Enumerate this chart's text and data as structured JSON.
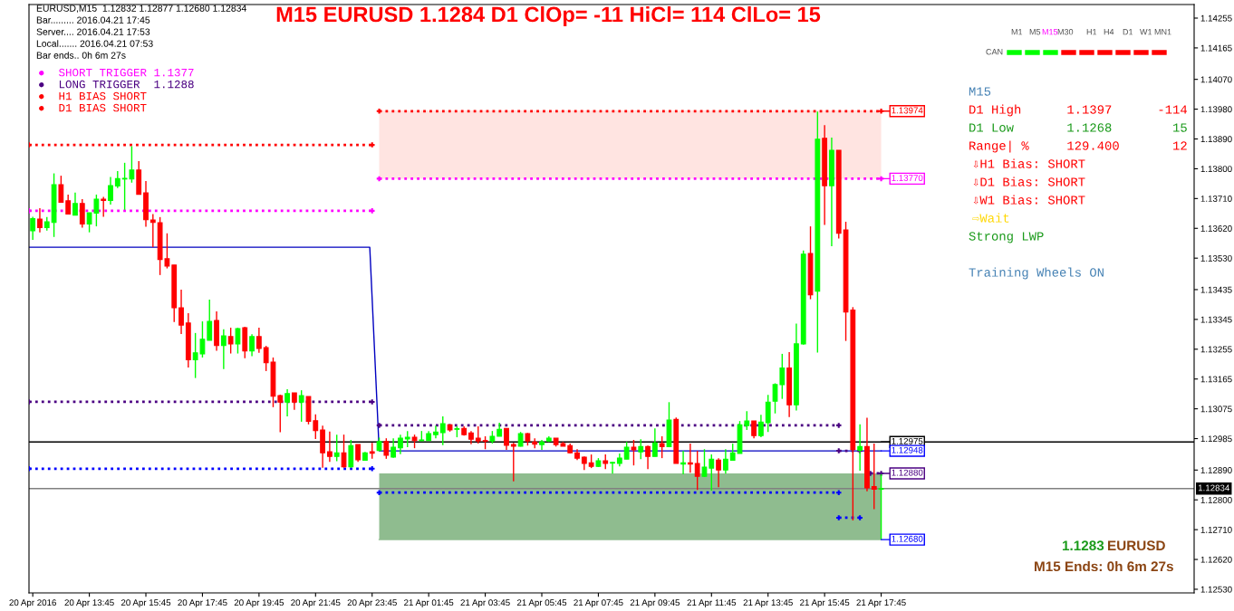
{
  "chart_data": {
    "type": "candlestick",
    "title": "M15 EURUSD 1.1284 D1 ClOp= -11 HiCl= 114 ClLo= 15",
    "x": [
      "2016-04-20T11:45",
      "2016-04-20T12:00",
      "2016-04-20T12:15",
      "2016-04-20T12:30",
      "2016-04-20T12:45",
      "2016-04-20T13:00",
      "2016-04-20T13:15",
      "2016-04-20T13:30",
      "2016-04-20T13:45",
      "2016-04-20T14:00",
      "2016-04-20T14:15",
      "2016-04-20T14:30",
      "2016-04-20T14:45",
      "2016-04-20T15:00",
      "2016-04-20T15:15",
      "2016-04-20T15:30",
      "2016-04-20T15:45",
      "2016-04-20T16:00",
      "2016-04-20T16:15",
      "2016-04-20T16:30",
      "2016-04-20T16:45",
      "2016-04-20T17:00",
      "2016-04-20T17:15",
      "2016-04-20T17:30",
      "2016-04-20T17:45",
      "2016-04-20T18:00",
      "2016-04-20T18:15",
      "2016-04-20T18:30",
      "2016-04-20T18:45",
      "2016-04-20T19:00",
      "2016-04-20T19:15",
      "2016-04-20T19:30",
      "2016-04-20T19:45",
      "2016-04-20T20:00",
      "2016-04-20T20:15",
      "2016-04-20T20:30",
      "2016-04-20T20:45",
      "2016-04-20T21:00",
      "2016-04-20T21:15",
      "2016-04-20T21:30",
      "2016-04-20T21:45",
      "2016-04-20T22:00",
      "2016-04-20T22:15",
      "2016-04-20T22:30",
      "2016-04-20T22:45",
      "2016-04-20T23:00",
      "2016-04-20T23:15",
      "2016-04-20T23:30",
      "2016-04-20T23:45",
      "2016-04-21T00:00",
      "2016-04-21T00:15",
      "2016-04-21T00:30",
      "2016-04-21T00:45",
      "2016-04-21T01:00",
      "2016-04-21T01:15",
      "2016-04-21T01:30",
      "2016-04-21T01:45",
      "2016-04-21T02:00",
      "2016-04-21T02:15",
      "2016-04-21T02:30",
      "2016-04-21T02:45",
      "2016-04-21T03:00",
      "2016-04-21T03:15",
      "2016-04-21T03:30",
      "2016-04-21T03:45",
      "2016-04-21T04:00",
      "2016-04-21T04:15",
      "2016-04-21T04:30",
      "2016-04-21T04:45",
      "2016-04-21T05:00",
      "2016-04-21T05:15",
      "2016-04-21T05:30",
      "2016-04-21T05:45",
      "2016-04-21T06:00",
      "2016-04-21T06:15",
      "2016-04-21T06:30",
      "2016-04-21T06:45",
      "2016-04-21T07:00",
      "2016-04-21T07:15",
      "2016-04-21T07:30",
      "2016-04-21T07:45",
      "2016-04-21T08:00",
      "2016-04-21T08:15",
      "2016-04-21T08:30",
      "2016-04-21T08:45",
      "2016-04-21T09:00",
      "2016-04-21T09:15",
      "2016-04-21T09:30",
      "2016-04-21T09:45",
      "2016-04-21T10:00",
      "2016-04-21T10:15",
      "2016-04-21T10:30",
      "2016-04-21T10:45",
      "2016-04-21T11:00",
      "2016-04-21T11:15",
      "2016-04-21T11:30",
      "2016-04-21T11:45",
      "2016-04-21T12:00",
      "2016-04-21T12:15",
      "2016-04-21T12:30",
      "2016-04-21T12:45",
      "2016-04-21T13:00",
      "2016-04-21T13:15",
      "2016-04-21T13:30",
      "2016-04-21T13:45",
      "2016-04-21T14:00",
      "2016-04-21T14:15",
      "2016-04-21T14:30",
      "2016-04-21T14:45",
      "2016-04-21T15:00",
      "2016-04-21T15:15",
      "2016-04-21T15:30",
      "2016-04-21T15:45",
      "2016-04-21T16:00",
      "2016-04-21T16:15",
      "2016-04-21T16:30",
      "2016-04-21T16:45",
      "2016-04-21T17:00",
      "2016-04-21T17:15",
      "2016-04-21T17:30",
      "2016-04-21T17:45"
    ],
    "ohlc": [
      [
        1.13613,
        1.13655,
        1.13585,
        1.13649
      ],
      [
        1.13648,
        1.13681,
        1.13608,
        1.13622
      ],
      [
        1.13622,
        1.13654,
        1.13613,
        1.1364
      ],
      [
        1.13638,
        1.13786,
        1.13594,
        1.13752
      ],
      [
        1.13752,
        1.13779,
        1.13697,
        1.13699
      ],
      [
        1.13703,
        1.13722,
        1.13663,
        1.13663
      ],
      [
        1.1366,
        1.13728,
        1.1366,
        1.13695
      ],
      [
        1.13695,
        1.13708,
        1.13622,
        1.13633
      ],
      [
        1.13633,
        1.13667,
        1.13608,
        1.13667
      ],
      [
        1.13666,
        1.13722,
        1.13626,
        1.13708
      ],
      [
        1.13708,
        1.13715,
        1.13655,
        1.13704
      ],
      [
        1.13704,
        1.13775,
        1.13692,
        1.13749
      ],
      [
        1.13748,
        1.13793,
        1.13742,
        1.1377
      ],
      [
        1.13769,
        1.13818,
        1.13676,
        1.13771
      ],
      [
        1.13769,
        1.13868,
        1.13758,
        1.13796
      ],
      [
        1.13796,
        1.13823,
        1.13723,
        1.13723
      ],
      [
        1.13727,
        1.13763,
        1.13625,
        1.13646
      ],
      [
        1.13645,
        1.13663,
        1.13563,
        1.13638
      ],
      [
        1.13637,
        1.13654,
        1.13479,
        1.13526
      ],
      [
        1.13528,
        1.13605,
        1.13499,
        1.13506
      ],
      [
        1.13509,
        1.13509,
        1.13337,
        1.1338
      ],
      [
        1.1338,
        1.13435,
        1.13301,
        1.13328
      ],
      [
        1.13334,
        1.13364,
        1.132,
        1.13223
      ],
      [
        1.13223,
        1.13304,
        1.13168,
        1.13244
      ],
      [
        1.13241,
        1.13339,
        1.1323,
        1.13285
      ],
      [
        1.13282,
        1.13405,
        1.13282,
        1.13339
      ],
      [
        1.13342,
        1.13369,
        1.1325,
        1.13266
      ],
      [
        1.13266,
        1.13315,
        1.13195,
        1.13295
      ],
      [
        1.13293,
        1.1332,
        1.13242,
        1.13271
      ],
      [
        1.13271,
        1.1332,
        1.13242,
        1.13317
      ],
      [
        1.1332,
        1.13323,
        1.13228,
        1.1325
      ],
      [
        1.1325,
        1.133,
        1.13234,
        1.13293
      ],
      [
        1.13293,
        1.1332,
        1.13244,
        1.13257
      ],
      [
        1.1326,
        1.13265,
        1.13189,
        1.13214
      ],
      [
        1.13216,
        1.1323,
        1.1308,
        1.13113
      ],
      [
        1.13115,
        1.13118,
        1.13004,
        1.13095
      ],
      [
        1.13095,
        1.13134,
        1.13052,
        1.13121
      ],
      [
        1.13123,
        1.13123,
        1.13072,
        1.13095
      ],
      [
        1.13095,
        1.13131,
        1.13036,
        1.13115
      ],
      [
        1.13112,
        1.13112,
        1.13028,
        1.13037
      ],
      [
        1.13039,
        1.13058,
        1.12984,
        1.13009
      ],
      [
        1.13011,
        1.13024,
        1.12897,
        1.12942
      ],
      [
        1.12945,
        1.13006,
        1.12915,
        1.12931
      ],
      [
        1.12931,
        1.12997,
        1.12917,
        1.12942
      ],
      [
        1.12942,
        1.12997,
        1.12897,
        1.129
      ],
      [
        1.129,
        1.12981,
        1.12897,
        1.12964
      ],
      [
        1.12967,
        1.12967,
        1.12915,
        1.12921
      ],
      [
        1.1292,
        1.12945,
        1.12918,
        1.12942
      ],
      [
        1.12945,
        1.12972,
        1.12924,
        1.12941
      ],
      [
        1.12949,
        1.12988,
        1.12947,
        1.12976
      ],
      [
        1.12976,
        1.12986,
        1.12924,
        1.12935
      ],
      [
        1.12929,
        1.12986,
        1.12927,
        1.12959
      ],
      [
        1.12957,
        1.12997,
        1.12938,
        1.12986
      ],
      [
        1.12984,
        1.13008,
        1.12959,
        1.12989
      ],
      [
        1.12989,
        1.12997,
        1.12956,
        1.12979
      ],
      [
        1.12979,
        1.13008,
        1.12977,
        1.12981
      ],
      [
        1.12979,
        1.13008,
        1.12979,
        1.13
      ],
      [
        1.12997,
        1.13024,
        1.12986,
        1.13005
      ],
      [
        1.13003,
        1.13052,
        1.12965,
        1.1303
      ],
      [
        1.13027,
        1.13027,
        1.13006,
        1.13011
      ],
      [
        1.13013,
        1.13022,
        1.12989,
        1.13015
      ],
      [
        1.13016,
        1.13022,
        1.12994,
        1.12997
      ],
      [
        1.13002,
        1.13008,
        1.12968,
        1.12983
      ],
      [
        1.12986,
        1.13022,
        1.1297,
        1.12978
      ],
      [
        1.12979,
        1.12992,
        1.12953,
        1.12977
      ],
      [
        1.12978,
        1.13008,
        1.1297,
        1.12992
      ],
      [
        1.12992,
        1.13033,
        1.12992,
        1.13013
      ],
      [
        1.13016,
        1.13016,
        1.12951,
        1.12965
      ],
      [
        1.12967,
        1.12972,
        1.12856,
        1.12962
      ],
      [
        1.12962,
        1.13005,
        1.12961,
        1.13
      ],
      [
        1.13,
        1.13002,
        1.12964,
        1.12978
      ],
      [
        1.12975,
        1.12986,
        1.12956,
        1.12968
      ],
      [
        1.12967,
        1.12981,
        1.12951,
        1.12975
      ],
      [
        1.12978,
        1.12992,
        1.12975,
        1.12986
      ],
      [
        1.12986,
        1.12986,
        1.12961,
        1.12967
      ],
      [
        1.1297,
        1.12975,
        1.12962,
        1.12962
      ],
      [
        1.12964,
        1.1297,
        1.1294,
        1.12942
      ],
      [
        1.12942,
        1.12953,
        1.1292,
        1.12926
      ],
      [
        1.12929,
        1.12931,
        1.1289,
        1.1291
      ],
      [
        1.12912,
        1.12937,
        1.12896,
        1.12901
      ],
      [
        1.12901,
        1.12926,
        1.12899,
        1.12918
      ],
      [
        1.12918,
        1.12937,
        1.12893,
        1.1291
      ],
      [
        1.12911,
        1.12915,
        1.12879,
        1.12913
      ],
      [
        1.1291,
        1.1294,
        1.12901,
        1.12926
      ],
      [
        1.12923,
        1.12975,
        1.12923,
        1.12959
      ],
      [
        1.12959,
        1.12981,
        1.12904,
        1.12951
      ],
      [
        1.12945,
        1.12983,
        1.12923,
        1.12961
      ],
      [
        1.12961,
        1.12964,
        1.12893,
        1.12931
      ],
      [
        1.12931,
        1.13016,
        1.12931,
        1.12972
      ],
      [
        1.1297,
        1.12992,
        1.12926,
        1.12961
      ],
      [
        1.12961,
        1.13095,
        1.12959,
        1.13041
      ],
      [
        1.13043,
        1.13049,
        1.1291,
        1.1291
      ],
      [
        1.12908,
        1.12948,
        1.12877,
        1.12912
      ],
      [
        1.12912,
        1.1297,
        1.12882,
        1.12908
      ],
      [
        1.1291,
        1.12948,
        1.1283,
        1.12871
      ],
      [
        1.12871,
        1.12953,
        1.12869,
        1.12899
      ],
      [
        1.12896,
        1.12937,
        1.12828,
        1.12923
      ],
      [
        1.1292,
        1.12926,
        1.12838,
        1.1289
      ],
      [
        1.1289,
        1.12953,
        1.12879,
        1.12923
      ],
      [
        1.1292,
        1.1297,
        1.1292,
        1.12942
      ],
      [
        1.1294,
        1.13038,
        1.1294,
        1.13027
      ],
      [
        1.13024,
        1.13068,
        1.13011,
        1.13038
      ],
      [
        1.13038,
        1.13038,
        1.12986,
        1.12994
      ],
      [
        1.12994,
        1.13057,
        1.12989,
        1.13035
      ],
      [
        1.13033,
        1.13117,
        1.13005,
        1.13095
      ],
      [
        1.13098,
        1.13152,
        1.13061,
        1.13148
      ],
      [
        1.13148,
        1.13241,
        1.13105,
        1.13198
      ],
      [
        1.13198,
        1.13246,
        1.1305,
        1.13087
      ],
      [
        1.13087,
        1.13332,
        1.1307,
        1.13271
      ],
      [
        1.13271,
        1.13553,
        1.13269,
        1.13542
      ],
      [
        1.13544,
        1.13626,
        1.13406,
        1.13419
      ],
      [
        1.1343,
        1.13973,
        1.13245,
        1.13889
      ],
      [
        1.13892,
        1.13932,
        1.1363,
        1.13749
      ],
      [
        1.13749,
        1.13894,
        1.13566,
        1.13856
      ],
      [
        1.13856,
        1.13856,
        1.13589,
        1.13605
      ],
      [
        1.13615,
        1.1364,
        1.1328,
        1.13367
      ],
      [
        1.13373,
        1.13382,
        1.12738,
        1.12952
      ],
      [
        1.1295,
        1.13028,
        1.12888,
        1.12961
      ],
      [
        1.12961,
        1.13048,
        1.12826,
        1.12836
      ],
      [
        1.1284,
        1.1297,
        1.12772,
        1.12832
      ],
      [
        1.12832,
        1.12877,
        1.1268,
        1.12834
      ]
    ],
    "colors": [
      "#00ff00",
      "#ff0000",
      "#00ff00",
      "#00ff00",
      "#ff0000",
      "#ff0000",
      "#00ff00",
      "#ff0000",
      "#00ff00",
      "#00ff00",
      "#ff0000",
      "#00ff00",
      "#00ff00",
      "#00ff00",
      "#00ff00",
      "#ff0000",
      "#ff0000",
      "#ff0000",
      "#ff0000",
      "#ff0000",
      "#ff0000",
      "#ff0000",
      "#ff0000",
      "#00ff00",
      "#00ff00",
      "#00ff00",
      "#ff0000",
      "#00ff00",
      "#ff0000",
      "#00ff00",
      "#ff0000",
      "#00ff00",
      "#ff0000",
      "#ff0000",
      "#ff0000",
      "#ff0000",
      "#00ff00",
      "#ff0000",
      "#00ff00",
      "#ff0000",
      "#ff0000",
      "#ff0000",
      "#ff0000",
      "#00ff00",
      "#ff0000",
      "#00ff00",
      "#ff0000",
      "#00ff00",
      "#ff0000",
      "#00ff00",
      "#ff0000",
      "#00ff00",
      "#00ff00",
      "#00ff00",
      "#ff0000",
      "#00ff00",
      "#00ff00",
      "#00ff00",
      "#00ff00",
      "#ff0000",
      "#00ff00",
      "#ff0000",
      "#ff0000",
      "#ff0000",
      "#ff0000",
      "#00ff00",
      "#00ff00",
      "#ff0000",
      "#ff0000",
      "#00ff00",
      "#ff0000",
      "#ff0000",
      "#00ff00",
      "#00ff00",
      "#ff0000",
      "#ff0000",
      "#ff0000",
      "#ff0000",
      "#ff0000",
      "#ff0000",
      "#00ff00",
      "#ff0000",
      "#00ff00",
      "#00ff00",
      "#00ff00",
      "#ff0000",
      "#00ff00",
      "#ff0000",
      "#00ff00",
      "#ff0000",
      "#00ff00",
      "#ff0000",
      "#00ff00",
      "#ff0000",
      "#ff0000",
      "#00ff00",
      "#00ff00",
      "#ff0000",
      "#00ff00",
      "#00ff00",
      "#00ff00",
      "#00ff00",
      "#ff0000",
      "#00ff00",
      "#00ff00",
      "#00ff00",
      "#00ff00",
      "#ff0000",
      "#00ff00",
      "#00ff00",
      "#ff0000",
      "#00ff00",
      "#ff0000",
      "#00ff00",
      "#ff0000",
      "#ff0000",
      "#ff0000",
      "#00ff00",
      "#ff0000",
      "#ff0000",
      "#00ff00"
    ],
    "series": [
      {
        "type": "line",
        "x": [
          "2016-04-21T00:00",
          "2016-04-21T17:45"
        ],
        "values": [
          1.13974,
          1.13974
        ],
        "lower": [
          1.1377,
          1.1377
        ],
        "upper": [
          1.13974,
          1.13974
        ],
        "color": "#ffe4e1",
        "line_style": "solid"
      },
      {
        "type": "line",
        "x": [
          "2016-04-21T00:00",
          "2016-04-21T17:45"
        ],
        "values": [
          1.1268,
          1.1268
        ],
        "lower": [
          1.1268,
          1.1268
        ],
        "upper": [
          1.1288,
          1.1288
        ],
        "color": "#8fbc8f",
        "line_style": "solid"
      },
      {
        "type": "line",
        "x": [
          "2016-04-20T11:37",
          "2016-04-20T23:45"
        ],
        "values": [
          1.13872,
          1.13872
        ],
        "color": "#ff0000",
        "line_style": "dotted",
        "marker": "cross"
      },
      {
        "type": "line",
        "x": [
          "2016-04-20T11:37",
          "2016-04-20T23:45"
        ],
        "values": [
          1.13673,
          1.13673
        ],
        "color": "#ff00ff",
        "line_style": "dotted",
        "marker": "cross"
      },
      {
        "type": "line",
        "x": [
          "2016-04-20T11:37",
          "2016-04-20T23:45"
        ],
        "values": [
          1.13096,
          1.13096
        ],
        "color": "#4b0082",
        "line_style": "dotted",
        "marker": "cross"
      },
      {
        "type": "line",
        "x": [
          "2016-04-20T11:37",
          "2016-04-20T23:45"
        ],
        "values": [
          1.12894,
          1.12894
        ],
        "color": "#0000ff",
        "line_style": "dotted",
        "marker": "cross"
      },
      {
        "type": "line",
        "x": [
          "2016-04-21T00:00",
          "2016-04-21T17:45"
        ],
        "values": [
          1.13974,
          1.13974
        ],
        "color": "#ff0000",
        "line_style": "dotted",
        "marker": "cross"
      },
      {
        "type": "line",
        "x": [
          "2016-04-21T00:00",
          "2016-04-21T17:45"
        ],
        "values": [
          1.1377,
          1.1377
        ],
        "color": "#ff00ff",
        "line_style": "dotted",
        "marker": "cross"
      },
      {
        "type": "line",
        "x": [
          "2016-04-21T00:00",
          "2016-04-21T16:15"
        ],
        "values": [
          1.13025,
          1.13025
        ],
        "color": "#4b0082",
        "line_style": "dotted",
        "marker": "cross"
      },
      {
        "type": "line",
        "x": [
          "2016-04-21T00:00",
          "2016-04-21T16:15"
        ],
        "values": [
          1.12822,
          1.12822
        ],
        "color": "#0000ff",
        "line_style": "dotted",
        "marker": "cross"
      },
      {
        "type": "line",
        "x": [
          "2016-04-21T16:15",
          "2016-04-21T17:00"
        ],
        "values": [
          1.12948,
          1.12948
        ],
        "color": "#4b0082",
        "line_style": "dotted",
        "marker": "cross"
      },
      {
        "type": "line",
        "x": [
          "2016-04-21T16:15",
          "2016-04-21T17:00"
        ],
        "values": [
          1.12746,
          1.12746
        ],
        "color": "#0000ff",
        "line_style": "dotted",
        "marker": "cross"
      },
      {
        "type": "line",
        "x": [
          "2016-04-21T17:22",
          "2016-04-21T17:45"
        ],
        "values": [
          1.1288,
          1.1288
        ],
        "color": "#4b0082",
        "line_style": "dotted",
        "marker": "cross"
      },
      {
        "type": "line",
        "x": [
          "2016-04-20T11:37",
          "2016-04-20T23:40",
          "2016-04-21T00:00",
          "2016-04-21T17:45"
        ],
        "values": [
          1.13563,
          1.13563,
          1.12948,
          1.12948
        ],
        "color": "#0000c0",
        "line_style": "solid"
      }
    ],
    "ref_lines": [
      {
        "axis": "y",
        "value": 1.12975,
        "color": "#000000",
        "line_style": "solid"
      },
      {
        "axis": "y",
        "value": 1.12834,
        "label": "1.12834",
        "color": "#808080",
        "line_style": "solid"
      }
    ],
    "xlim": [
      "2016-04-20T11:37",
      "2016-04-22T04:49"
    ],
    "xticks": [
      {
        "value": "2016-04-20T11:45",
        "label": "20 Apr 2016"
      },
      {
        "value": "2016-04-20T13:45",
        "label": "20 Apr 13:45"
      },
      {
        "value": "2016-04-20T15:45",
        "label": "20 Apr 15:45"
      },
      {
        "value": "2016-04-20T17:45",
        "label": "20 Apr 17:45"
      },
      {
        "value": "2016-04-20T19:45",
        "label": "20 Apr 19:45"
      },
      {
        "value": "2016-04-20T21:45",
        "label": "20 Apr 21:45"
      },
      {
        "value": "2016-04-20T23:45",
        "label": "20 Apr 23:45"
      },
      {
        "value": "2016-04-21T01:45",
        "label": "21 Apr 01:45"
      },
      {
        "value": "2016-04-21T03:45",
        "label": "21 Apr 03:45"
      },
      {
        "value": "2016-04-21T05:45",
        "label": "21 Apr 05:45"
      },
      {
        "value": "2016-04-21T07:45",
        "label": "21 Apr 07:45"
      },
      {
        "value": "2016-04-21T09:45",
        "label": "21 Apr 09:45"
      },
      {
        "value": "2016-04-21T11:45",
        "label": "21 Apr 11:45"
      },
      {
        "value": "2016-04-21T13:45",
        "label": "21 Apr 13:45"
      },
      {
        "value": "2016-04-21T15:45",
        "label": "21 Apr 15:45"
      },
      {
        "value": "2016-04-21T17:45",
        "label": "21 Apr 17:45"
      }
    ],
    "ylim": [
      1.12519,
      1.14296
    ],
    "yticks": [
      {
        "value": 1.14255,
        "label": "1.14255"
      },
      {
        "value": 1.14165,
        "label": "1.14165"
      },
      {
        "value": 1.1407,
        "label": "1.14070"
      },
      {
        "value": 1.1398,
        "label": "1.13980"
      },
      {
        "value": 1.1389,
        "label": "1.13890"
      },
      {
        "value": 1.138,
        "label": "1.13800"
      },
      {
        "value": 1.1371,
        "label": "1.13710"
      },
      {
        "value": 1.1362,
        "label": "1.13620"
      },
      {
        "value": 1.1353,
        "label": "1.13530"
      },
      {
        "value": 1.13435,
        "label": "1.13435"
      },
      {
        "value": 1.13345,
        "label": "1.13345"
      },
      {
        "value": 1.13255,
        "label": "1.13255"
      },
      {
        "value": 1.13165,
        "label": "1.13165"
      },
      {
        "value": 1.13075,
        "label": "1.13075"
      },
      {
        "value": 1.12985,
        "label": "1.12985"
      },
      {
        "value": 1.1289,
        "label": "1.12890"
      },
      {
        "value": 1.128,
        "label": "1.12800"
      },
      {
        "value": 1.1271,
        "label": "1.12710"
      },
      {
        "value": 1.1262,
        "label": "1.12620"
      },
      {
        "value": 1.1253,
        "label": "1.12530"
      }
    ],
    "annotations": [
      "EURUSD,M15  1.12832 1.12877 1.12680 1.12834",
      "Bar......... 2016.04.21 17:45",
      "Server.... 2016.04.21 17:53",
      "Local....... 2016.04.21 07:53",
      "Bar ends.. 0h 6m 27s",
      "●  SHORT TRIGGER 1.1377",
      "●  LONG TRIGGER  1.1288",
      "●  H1 BIAS SHORT",
      "●  D1 BIAS SHORT",
      "M1",
      "M5",
      "M15",
      "M30",
      "H1",
      "H4",
      "D1",
      "W1",
      "MN1",
      "CAN",
      "M15",
      "D1 High      1.1397      -114",
      "D1 Low       1.1268        15",
      "Range| %     129.400       12",
      "⇩H1 Bias: SHORT",
      "⇩D1 Bias: SHORT",
      "⇩W1 Bias: SHORT",
      "⇨Wait",
      "Strong LWP",
      "Training Wheels ON",
      "1.1283",
      "EURUSD",
      "M15 Ends: 0h 6m 27s",
      {
        "text": "1.13974",
        "x": "2016-04-21T17:45",
        "y": 1.13974
      },
      {
        "text": "1.13770",
        "x": "2016-04-21T17:45",
        "y": 1.1377
      },
      {
        "text": "1.12975",
        "x": "2016-04-21T17:45",
        "y": 1.12975
      },
      {
        "text": "1.12948",
        "x": "2016-04-21T17:45",
        "y": 1.12948
      },
      {
        "text": "1.12880",
        "x": "2016-04-21T17:45",
        "y": 1.1288
      },
      {
        "text": "1.12680",
        "x": "2016-04-21T17:45",
        "y": 1.1268
      }
    ]
  }
}
